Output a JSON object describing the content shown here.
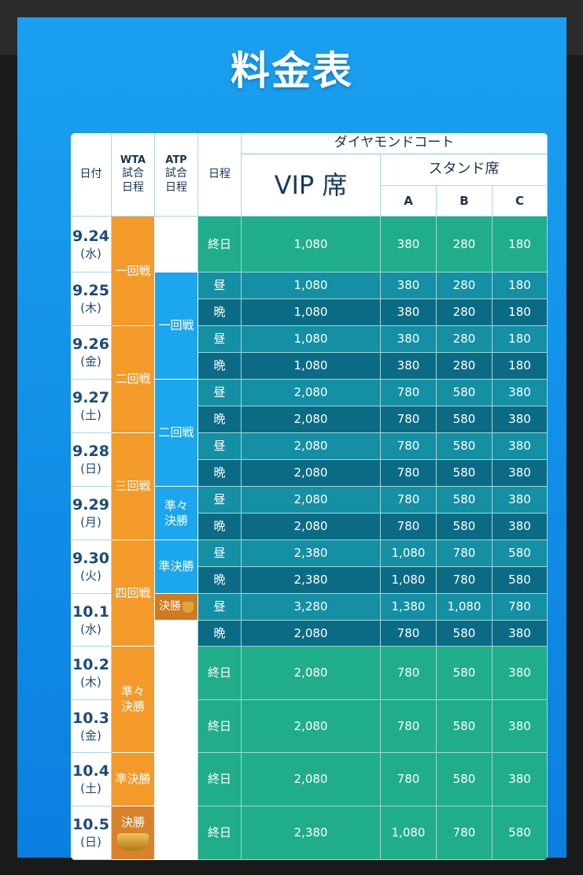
{
  "title": "料金表",
  "header": {
    "date": "日付",
    "wta_top": "WTA",
    "wta_bottom1": "試合",
    "wta_bottom2": "日程",
    "atp_top": "ATP",
    "atp_bottom1": "試合",
    "atp_bottom2": "日程",
    "schedule": "日程",
    "diamond_court": "ダイヤモンドコート",
    "vip": "VIP 席",
    "stand": "スタンド席",
    "col_a": "A",
    "col_b": "B",
    "col_c": "C"
  },
  "dates": [
    {
      "d": "9.24",
      "w": "(水)"
    },
    {
      "d": "9.25",
      "w": "(木)"
    },
    {
      "d": "9.26",
      "w": "(金)"
    },
    {
      "d": "9.27",
      "w": "(土)"
    },
    {
      "d": "9.28",
      "w": "(日)"
    },
    {
      "d": "9.29",
      "w": "(月)"
    },
    {
      "d": "9.30",
      "w": "(火)"
    },
    {
      "d": "10.1",
      "w": "(水)"
    },
    {
      "d": "10.2",
      "w": "(木)"
    },
    {
      "d": "10.3",
      "w": "(金)"
    },
    {
      "d": "10.4",
      "w": "(土)"
    },
    {
      "d": "10.5",
      "w": "(日)"
    }
  ],
  "wta": [
    "一回戦",
    "二回戦",
    "三回戦",
    "四回戦",
    "準々\n決勝",
    "準決勝",
    "決勝"
  ],
  "atp": [
    "一回戦",
    "二回戦",
    "準々\n決勝",
    "準決勝",
    "決勝"
  ],
  "rows": [
    {
      "s": "終日",
      "vip": "1,080",
      "a": "380",
      "b": "280",
      "c": "180"
    },
    {
      "s": "昼",
      "vip": "1,080",
      "a": "380",
      "b": "280",
      "c": "180"
    },
    {
      "s": "晩",
      "vip": "1,080",
      "a": "380",
      "b": "280",
      "c": "180"
    },
    {
      "s": "昼",
      "vip": "1,080",
      "a": "380",
      "b": "280",
      "c": "180"
    },
    {
      "s": "晩",
      "vip": "1,080",
      "a": "380",
      "b": "280",
      "c": "180"
    },
    {
      "s": "昼",
      "vip": "2,080",
      "a": "780",
      "b": "580",
      "c": "380"
    },
    {
      "s": "晩",
      "vip": "2,080",
      "a": "780",
      "b": "580",
      "c": "380"
    },
    {
      "s": "昼",
      "vip": "2,080",
      "a": "780",
      "b": "580",
      "c": "380"
    },
    {
      "s": "晩",
      "vip": "2,080",
      "a": "780",
      "b": "580",
      "c": "380"
    },
    {
      "s": "昼",
      "vip": "2,080",
      "a": "780",
      "b": "580",
      "c": "380"
    },
    {
      "s": "晩",
      "vip": "2,080",
      "a": "780",
      "b": "580",
      "c": "380"
    },
    {
      "s": "昼",
      "vip": "2,380",
      "a": "1,080",
      "b": "780",
      "c": "580"
    },
    {
      "s": "晩",
      "vip": "2,380",
      "a": "1,080",
      "b": "780",
      "c": "580"
    },
    {
      "s": "昼",
      "vip": "3,280",
      "a": "1,380",
      "b": "1,080",
      "c": "780"
    },
    {
      "s": "晩",
      "vip": "2,080",
      "a": "780",
      "b": "580",
      "c": "380"
    },
    {
      "s": "終日",
      "vip": "2,080",
      "a": "780",
      "b": "580",
      "c": "380"
    },
    {
      "s": "終日",
      "vip": "2,080",
      "a": "780",
      "b": "580",
      "c": "380"
    },
    {
      "s": "終日",
      "vip": "2,080",
      "a": "780",
      "b": "580",
      "c": "380"
    },
    {
      "s": "終日",
      "vip": "2,380",
      "a": "1,080",
      "b": "780",
      "c": "580"
    }
  ],
  "colors": {
    "panel_blue": "#0b7fe0",
    "wta_orange": "#f39a2a",
    "atp_blue": "#1ba6ee",
    "green": "#1fad8a",
    "teal": "#148fa4",
    "navy": "#0c6b84"
  }
}
